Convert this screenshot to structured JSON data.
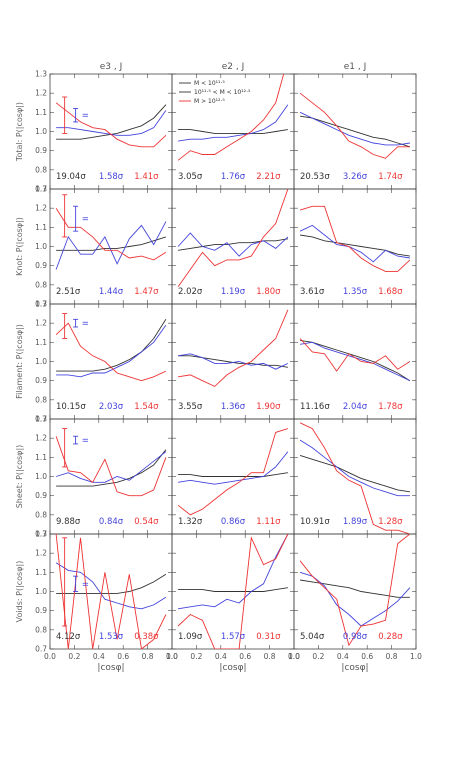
{
  "colors": {
    "black": "#333333",
    "blue": "#4444dd",
    "red": "#ee3333",
    "frame": "#444444"
  },
  "chart_data": {
    "type": "line",
    "xlabel": "|cosφ|",
    "xlim": [
      0,
      1
    ],
    "ylim": [
      0.7,
      1.3
    ],
    "xticks": [
      "0.0",
      "0.2",
      "0.4",
      "0.6",
      "0.8",
      "1.0"
    ],
    "yticks": [
      "0.7",
      "0.8",
      "0.9",
      "1.0",
      "1.1",
      "1.2",
      "1.3"
    ],
    "column_titles": [
      "e3 , J",
      "e2 , J",
      "e1 , J"
    ],
    "row_labels": [
      "Total: P(|cosφ|)",
      "Knot: P(|cosφ|)",
      "Filament: P(|cosφ|)",
      "Sheet: P(|cosφ|)",
      "Voids: P(|cosφ|)"
    ],
    "legend": [
      "M < 10¹¹·⁵",
      "10¹¹·⁵ < M < 10¹²·⁵",
      "M > 10¹²·⁵"
    ],
    "error_bar_label": "=",
    "x": [
      0.05,
      0.15,
      0.25,
      0.35,
      0.45,
      0.55,
      0.65,
      0.75,
      0.85,
      0.95
    ],
    "panels": [
      [
        {
          "sig": [
            "19.04σ",
            "1.58σ",
            "1.41σ"
          ],
          "black": [
            0.96,
            0.96,
            0.96,
            0.97,
            0.98,
            0.99,
            1.01,
            1.03,
            1.07,
            1.14
          ],
          "blue": [
            1.02,
            1.02,
            1.01,
            1.0,
            0.99,
            0.98,
            0.98,
            0.99,
            1.02,
            1.11
          ],
          "red": [
            1.15,
            1.1,
            1.05,
            1.02,
            1.01,
            0.96,
            0.93,
            0.92,
            0.92,
            0.98
          ],
          "err": {
            "red": [
              0.99,
              1.18
            ],
            "blue": [
              1.05,
              1.12
            ]
          }
        },
        {
          "sig": [
            "3.05σ",
            "1.76σ",
            "2.21σ"
          ],
          "black": [
            1.01,
            1.01,
            1.0,
            0.99,
            0.99,
            0.99,
            0.99,
            0.99,
            1.0,
            1.01
          ],
          "blue": [
            0.95,
            0.96,
            0.96,
            0.97,
            0.97,
            0.98,
            0.99,
            1.01,
            1.05,
            1.14
          ],
          "red": [
            0.85,
            0.9,
            0.88,
            0.88,
            0.92,
            0.96,
            1.0,
            1.06,
            1.15,
            1.38
          ],
          "legend": true
        },
        {
          "sig": [
            "20.53σ",
            "3.26σ",
            "1.74σ"
          ],
          "black": [
            1.08,
            1.07,
            1.05,
            1.03,
            1.01,
            0.99,
            0.97,
            0.96,
            0.94,
            0.92
          ],
          "blue": [
            1.1,
            1.07,
            1.04,
            1.01,
            0.98,
            0.96,
            0.94,
            0.93,
            0.93,
            0.94
          ],
          "red": [
            1.2,
            1.15,
            1.1,
            1.03,
            0.95,
            0.92,
            0.88,
            0.86,
            0.92,
            0.92
          ]
        }
      ],
      [
        {
          "sig": [
            "2.51σ",
            "1.44σ",
            "1.47σ"
          ],
          "black": [
            0.98,
            0.98,
            0.98,
            0.98,
            0.99,
            0.99,
            1.0,
            1.01,
            1.03,
            1.05
          ],
          "blue": [
            0.88,
            1.05,
            0.96,
            0.96,
            1.05,
            0.91,
            1.04,
            1.11,
            1.01,
            1.13
          ],
          "red": [
            1.2,
            1.1,
            1.1,
            1.05,
            0.98,
            0.98,
            0.94,
            0.95,
            0.93,
            0.97
          ],
          "err": {
            "red": [
              1.05,
              1.27
            ],
            "blue": [
              1.08,
              1.21
            ]
          }
        },
        {
          "sig": [
            "2.02σ",
            "1.19σ",
            "1.80σ"
          ],
          "black": [
            0.98,
            0.99,
            1.0,
            1.01,
            1.01,
            1.02,
            1.02,
            1.03,
            1.03,
            1.04
          ],
          "blue": [
            1.0,
            1.07,
            1.0,
            0.98,
            1.02,
            0.95,
            1.01,
            1.03,
            0.99,
            1.05
          ],
          "red": [
            0.79,
            0.88,
            0.97,
            0.9,
            0.93,
            0.93,
            0.95,
            1.05,
            1.12,
            1.3
          ]
        },
        {
          "sig": [
            "3.61σ",
            "1.35σ",
            "1.68σ"
          ],
          "black": [
            1.06,
            1.05,
            1.03,
            1.02,
            1.01,
            1.0,
            0.99,
            0.98,
            0.96,
            0.95
          ],
          "blue": [
            1.08,
            1.11,
            1.06,
            1.01,
            1.0,
            0.97,
            0.92,
            0.98,
            0.95,
            0.94
          ],
          "red": [
            1.19,
            1.21,
            1.21,
            1.02,
            1.0,
            0.94,
            0.9,
            0.87,
            0.87,
            0.93
          ]
        }
      ],
      [
        {
          "sig": [
            "10.15σ",
            "2.03σ",
            "1.54σ"
          ],
          "black": [
            0.95,
            0.95,
            0.95,
            0.95,
            0.96,
            0.98,
            1.01,
            1.05,
            1.12,
            1.22
          ],
          "blue": [
            0.93,
            0.93,
            0.92,
            0.94,
            0.94,
            0.97,
            1.0,
            1.05,
            1.1,
            1.19
          ],
          "red": [
            1.14,
            1.2,
            1.08,
            1.03,
            1.0,
            0.94,
            0.92,
            0.9,
            0.92,
            0.95
          ],
          "err": {
            "red": [
              1.12,
              1.25
            ],
            "blue": [
              1.18,
              1.22
            ]
          }
        },
        {
          "sig": [
            "3.55σ",
            "1.36σ",
            "1.90σ"
          ],
          "black": [
            1.03,
            1.03,
            1.02,
            1.01,
            1.0,
            0.99,
            0.99,
            0.98,
            0.98,
            0.97
          ],
          "blue": [
            1.03,
            1.04,
            1.02,
            0.99,
            0.99,
            1.0,
            0.98,
            0.99,
            0.96,
            0.99
          ],
          "red": [
            0.92,
            0.93,
            0.9,
            0.87,
            0.93,
            0.97,
            1.0,
            1.06,
            1.12,
            1.27
          ]
        },
        {
          "sig": [
            "11.16σ",
            "2.04σ",
            "1.78σ"
          ],
          "black": [
            1.11,
            1.1,
            1.08,
            1.06,
            1.04,
            1.02,
            1.0,
            0.97,
            0.94,
            0.9
          ],
          "blue": [
            1.09,
            1.1,
            1.07,
            1.05,
            1.03,
            1.01,
            0.99,
            0.96,
            0.93,
            0.9
          ],
          "red": [
            1.12,
            1.05,
            1.04,
            0.95,
            1.04,
            1.0,
            0.99,
            1.03,
            0.96,
            1.0
          ]
        }
      ],
      [
        {
          "sig": [
            "9.88σ",
            "0.84σ",
            "0.54σ"
          ],
          "black": [
            0.95,
            0.95,
            0.95,
            0.95,
            0.96,
            0.97,
            0.99,
            1.02,
            1.06,
            1.14
          ],
          "blue": [
            1.0,
            1.02,
            0.99,
            0.97,
            0.97,
            1.0,
            0.98,
            1.03,
            1.08,
            1.13
          ],
          "red": [
            1.21,
            1.03,
            1.02,
            0.97,
            1.09,
            0.92,
            0.9,
            0.9,
            0.93,
            1.1
          ],
          "err": {
            "red": [
              1.05,
              1.25
            ],
            "blue": [
              1.17,
              1.21
            ]
          }
        },
        {
          "sig": [
            "1.32σ",
            "0.86σ",
            "1.11σ"
          ],
          "black": [
            1.01,
            1.01,
            1.0,
            1.0,
            1.0,
            1.0,
            1.0,
            1.0,
            1.01,
            1.02
          ],
          "blue": [
            0.97,
            0.98,
            0.97,
            0.96,
            0.97,
            0.98,
            0.99,
            1.0,
            1.05,
            1.13
          ],
          "red": [
            0.85,
            0.8,
            0.83,
            0.88,
            0.93,
            0.97,
            1.02,
            1.02,
            1.23,
            1.25
          ]
        },
        {
          "sig": [
            "10.91σ",
            "1.89σ",
            "1.28σ"
          ],
          "black": [
            1.11,
            1.09,
            1.07,
            1.05,
            1.02,
            0.99,
            0.97,
            0.95,
            0.93,
            0.92
          ],
          "blue": [
            1.19,
            1.15,
            1.1,
            1.05,
            1.0,
            0.97,
            0.94,
            0.92,
            0.9,
            0.9
          ],
          "red": [
            1.28,
            1.25,
            1.15,
            1.03,
            0.98,
            0.95,
            0.75,
            0.72,
            0.72,
            0.7
          ]
        }
      ],
      [
        {
          "sig": [
            "4.12σ",
            "1.53σ",
            "0.38σ"
          ],
          "black": [
            0.99,
            0.99,
            0.99,
            0.99,
            0.99,
            0.99,
            1.0,
            1.02,
            1.05,
            1.09
          ],
          "blue": [
            1.15,
            1.11,
            1.1,
            1.05,
            0.96,
            0.94,
            0.92,
            0.91,
            0.93,
            0.97
          ],
          "red": [
            1.3,
            0.7,
            1.28,
            0.7,
            1.1,
            0.75,
            1.09,
            0.7,
            0.75,
            0.88
          ],
          "err": {
            "red": [
              0.82,
              1.28
            ],
            "blue": [
              1.0,
              1.08
            ]
          }
        },
        {
          "sig": [
            "1.09σ",
            "1.57σ",
            "0.31σ"
          ],
          "black": [
            1.01,
            1.01,
            1.01,
            1.0,
            1.0,
            1.0,
            1.0,
            1.0,
            1.01,
            1.02
          ],
          "blue": [
            0.91,
            0.92,
            0.93,
            0.92,
            0.96,
            0.94,
            1.0,
            1.04,
            1.18,
            1.3
          ],
          "red": [
            0.82,
            0.88,
            0.85,
            0.7,
            0.7,
            0.7,
            1.28,
            1.14,
            1.17,
            1.3
          ]
        },
        {
          "sig": [
            "5.04σ",
            "0.98σ",
            "0.28σ"
          ],
          "black": [
            1.06,
            1.05,
            1.04,
            1.03,
            1.02,
            1.0,
            0.99,
            0.98,
            0.97,
            0.97
          ],
          "blue": [
            1.1,
            1.08,
            1.03,
            0.93,
            0.88,
            0.82,
            0.86,
            0.9,
            0.95,
            1.02
          ],
          "red": [
            1.16,
            1.08,
            1.02,
            0.96,
            0.72,
            0.82,
            0.83,
            0.85,
            1.25,
            1.3
          ]
        }
      ]
    ]
  }
}
